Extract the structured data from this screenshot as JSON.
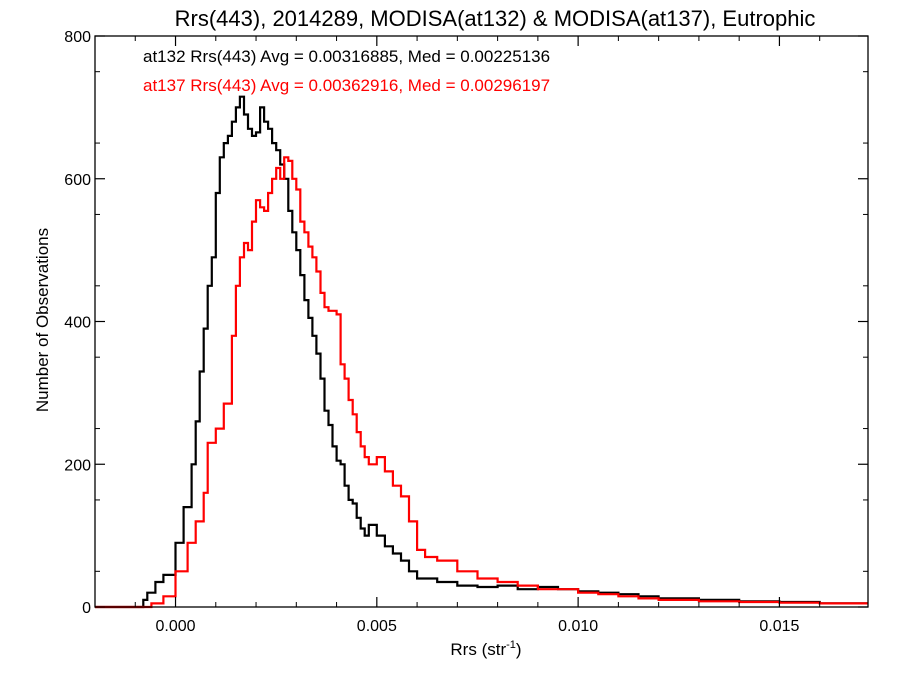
{
  "chart_data": {
    "type": "line",
    "title": "Rrs(443), 2014289, MODISA(at132) & MODISA(at137), Eutrophic",
    "xlabel_main": "Rrs (str",
    "xlabel_sup": "-1",
    "xlabel_close": ")",
    "ylabel": "Number of Observations",
    "xlim": [
      -0.002,
      0.0172
    ],
    "ylim": [
      0,
      800
    ],
    "xticks": [
      0.0,
      0.005,
      0.01,
      0.015
    ],
    "xtick_labels": [
      "0.000",
      "0.005",
      "0.010",
      "0.015"
    ],
    "yticks": [
      0,
      200,
      400,
      600,
      800
    ],
    "ytick_labels": [
      "0",
      "200",
      "400",
      "600",
      "800"
    ],
    "grid": false,
    "legend_placement": "top-left",
    "series": [
      {
        "name": "at132",
        "annotation": "at132 Rrs(443) Avg = 0.00316885, Med = 0.00225136",
        "color": "#000000",
        "points": [
          [
            -0.002,
            0
          ],
          [
            -0.0015,
            0
          ],
          [
            -0.001,
            0
          ],
          [
            -0.0008,
            10
          ],
          [
            -0.0007,
            20
          ],
          [
            -0.0005,
            35
          ],
          [
            -0.0003,
            45
          ],
          [
            0.0,
            90
          ],
          [
            0.0002,
            140
          ],
          [
            0.0004,
            200
          ],
          [
            0.0005,
            260
          ],
          [
            0.0006,
            330
          ],
          [
            0.0007,
            390
          ],
          [
            0.0008,
            450
          ],
          [
            0.0009,
            490
          ],
          [
            0.001,
            580
          ],
          [
            0.0011,
            630
          ],
          [
            0.0012,
            650
          ],
          [
            0.0013,
            660
          ],
          [
            0.0014,
            680
          ],
          [
            0.0015,
            700
          ],
          [
            0.0016,
            715
          ],
          [
            0.0017,
            690
          ],
          [
            0.0018,
            670
          ],
          [
            0.0019,
            660
          ],
          [
            0.002,
            665
          ],
          [
            0.0021,
            700
          ],
          [
            0.0022,
            680
          ],
          [
            0.0023,
            670
          ],
          [
            0.0024,
            650
          ],
          [
            0.0025,
            640
          ],
          [
            0.0026,
            620
          ],
          [
            0.0027,
            600
          ],
          [
            0.0028,
            555
          ],
          [
            0.0029,
            525
          ],
          [
            0.003,
            500
          ],
          [
            0.0031,
            465
          ],
          [
            0.0032,
            430
          ],
          [
            0.0033,
            405
          ],
          [
            0.0034,
            380
          ],
          [
            0.0035,
            355
          ],
          [
            0.0036,
            320
          ],
          [
            0.0037,
            275
          ],
          [
            0.0038,
            255
          ],
          [
            0.0039,
            225
          ],
          [
            0.004,
            205
          ],
          [
            0.0041,
            200
          ],
          [
            0.0042,
            170
          ],
          [
            0.0043,
            150
          ],
          [
            0.0044,
            145
          ],
          [
            0.0045,
            125
          ],
          [
            0.0046,
            110
          ],
          [
            0.0047,
            100
          ],
          [
            0.0048,
            115
          ],
          [
            0.005,
            100
          ],
          [
            0.0052,
            85
          ],
          [
            0.0054,
            75
          ],
          [
            0.0056,
            65
          ],
          [
            0.0058,
            50
          ],
          [
            0.006,
            40
          ],
          [
            0.0065,
            35
          ],
          [
            0.007,
            30
          ],
          [
            0.0075,
            28
          ],
          [
            0.008,
            30
          ],
          [
            0.0085,
            25
          ],
          [
            0.009,
            28
          ],
          [
            0.0095,
            25
          ],
          [
            0.01,
            22
          ],
          [
            0.0105,
            20
          ],
          [
            0.011,
            18
          ],
          [
            0.0115,
            15
          ],
          [
            0.012,
            12
          ],
          [
            0.0125,
            12
          ],
          [
            0.013,
            10
          ],
          [
            0.014,
            8
          ],
          [
            0.015,
            7
          ],
          [
            0.016,
            5
          ],
          [
            0.0172,
            5
          ]
        ]
      },
      {
        "name": "at137",
        "annotation": "at137 Rrs(443) Avg = 0.00362916, Med = 0.00296197",
        "color": "#ff0000",
        "points": [
          [
            -0.002,
            0
          ],
          [
            -0.001,
            0
          ],
          [
            -0.0006,
            5
          ],
          [
            -0.0003,
            15
          ],
          [
            0.0,
            50
          ],
          [
            0.0003,
            90
          ],
          [
            0.0005,
            120
          ],
          [
            0.0007,
            160
          ],
          [
            0.0008,
            230
          ],
          [
            0.001,
            250
          ],
          [
            0.0012,
            285
          ],
          [
            0.0014,
            380
          ],
          [
            0.0015,
            450
          ],
          [
            0.0016,
            490
          ],
          [
            0.0017,
            510
          ],
          [
            0.0018,
            500
          ],
          [
            0.0019,
            540
          ],
          [
            0.002,
            570
          ],
          [
            0.0021,
            560
          ],
          [
            0.0022,
            555
          ],
          [
            0.0023,
            580
          ],
          [
            0.0024,
            600
          ],
          [
            0.0025,
            615
          ],
          [
            0.0026,
            600
          ],
          [
            0.0027,
            630
          ],
          [
            0.0028,
            625
          ],
          [
            0.0029,
            600
          ],
          [
            0.003,
            585
          ],
          [
            0.0031,
            540
          ],
          [
            0.0032,
            525
          ],
          [
            0.0033,
            505
          ],
          [
            0.0034,
            490
          ],
          [
            0.0035,
            470
          ],
          [
            0.0036,
            440
          ],
          [
            0.0037,
            420
          ],
          [
            0.0038,
            415
          ],
          [
            0.004,
            410
          ],
          [
            0.0041,
            340
          ],
          [
            0.0042,
            320
          ],
          [
            0.0043,
            290
          ],
          [
            0.0044,
            270
          ],
          [
            0.0045,
            245
          ],
          [
            0.0046,
            225
          ],
          [
            0.0047,
            210
          ],
          [
            0.0048,
            200
          ],
          [
            0.005,
            210
          ],
          [
            0.0052,
            190
          ],
          [
            0.0054,
            170
          ],
          [
            0.0056,
            155
          ],
          [
            0.0058,
            120
          ],
          [
            0.006,
            80
          ],
          [
            0.0062,
            70
          ],
          [
            0.0065,
            65
          ],
          [
            0.007,
            50
          ],
          [
            0.0075,
            40
          ],
          [
            0.008,
            35
          ],
          [
            0.0085,
            30
          ],
          [
            0.009,
            25
          ],
          [
            0.0095,
            25
          ],
          [
            0.01,
            20
          ],
          [
            0.0105,
            18
          ],
          [
            0.011,
            15
          ],
          [
            0.0115,
            12
          ],
          [
            0.012,
            10
          ],
          [
            0.0125,
            10
          ],
          [
            0.013,
            8
          ],
          [
            0.014,
            7
          ],
          [
            0.015,
            6
          ],
          [
            0.016,
            5
          ],
          [
            0.0172,
            5
          ]
        ]
      }
    ]
  }
}
